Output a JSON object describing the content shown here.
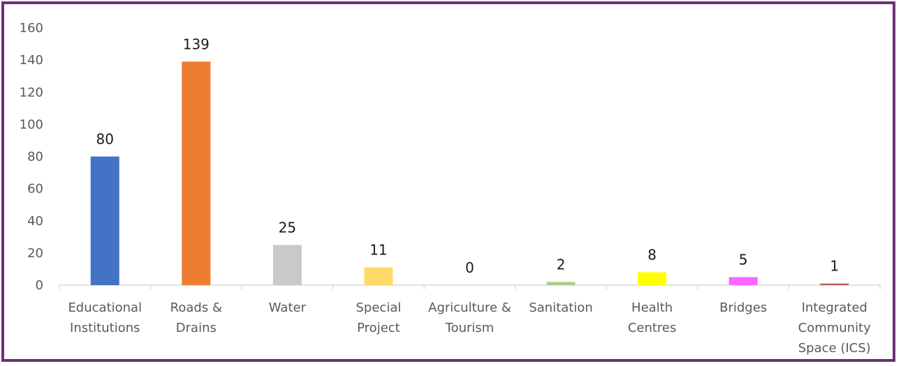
{
  "chart_data": {
    "type": "bar",
    "categories": [
      [
        "Educational",
        "Institutions"
      ],
      [
        "Roads &",
        "Drains"
      ],
      [
        "Water"
      ],
      [
        "Special",
        "Project"
      ],
      [
        "Agriculture &",
        "Tourism"
      ],
      [
        "Sanitation"
      ],
      [
        "Health",
        "Centres"
      ],
      [
        "Bridges"
      ],
      [
        "Integrated",
        "Community",
        "Space (ICS)"
      ]
    ],
    "values": [
      80,
      139,
      25,
      11,
      0,
      2,
      8,
      5,
      1
    ],
    "data_labels": [
      "80",
      "139",
      "25",
      "11",
      "0",
      "2",
      "8",
      "5",
      "1"
    ],
    "colors": [
      "#4472c4",
      "#ed7d31",
      "#c9c9c9",
      "#ffd966",
      "#c00000",
      "#a9d18e",
      "#ffff00",
      "#ff66ff",
      "#c55a5a"
    ],
    "title": "",
    "xlabel": "",
    "ylabel": "",
    "ylim": [
      0,
      160
    ],
    "yticks": [
      0,
      20,
      40,
      60,
      80,
      100,
      120,
      140,
      160
    ],
    "grid": false,
    "legend": "none",
    "border_color": "#6f2f78",
    "axis_color": "#d9d9d9"
  }
}
